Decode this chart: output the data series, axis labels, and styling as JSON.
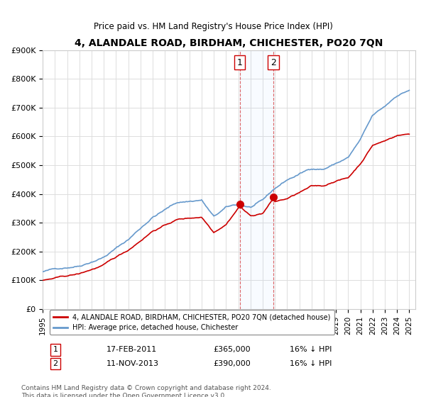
{
  "title": "4, ALANDALE ROAD, BIRDHAM, CHICHESTER, PO20 7QN",
  "subtitle": "Price paid vs. HM Land Registry's House Price Index (HPI)",
  "ylabel": "",
  "ylim": [
    0,
    900000
  ],
  "yticks": [
    0,
    100000,
    200000,
    300000,
    400000,
    500000,
    600000,
    700000,
    800000,
    900000
  ],
  "ytick_labels": [
    "£0",
    "£100K",
    "£200K",
    "£300K",
    "£400K",
    "£500K",
    "£600K",
    "£700K",
    "£800K",
    "£900K"
  ],
  "sale1_date_num": 2011.12,
  "sale1_label": "1",
  "sale1_price": 365000,
  "sale1_date_str": "17-FEB-2011",
  "sale1_hpi_diff": "16% ↓ HPI",
  "sale2_date_num": 2013.87,
  "sale2_label": "2",
  "sale2_price": 390000,
  "sale2_date_str": "11-NOV-2013",
  "sale2_hpi_diff": "16% ↓ HPI",
  "line1_label": "4, ALANDALE ROAD, BIRDHAM, CHICHESTER, PO20 7QN (detached house)",
  "line2_label": "HPI: Average price, detached house, Chichester",
  "line1_color": "#cc0000",
  "line2_color": "#6699cc",
  "background_color": "#ffffff",
  "grid_color": "#dddddd",
  "footnote": "Contains HM Land Registry data © Crown copyright and database right 2024.\nThis data is licensed under the Open Government Licence v3.0.",
  "xlim_start": 1995.0,
  "xlim_end": 2025.5
}
